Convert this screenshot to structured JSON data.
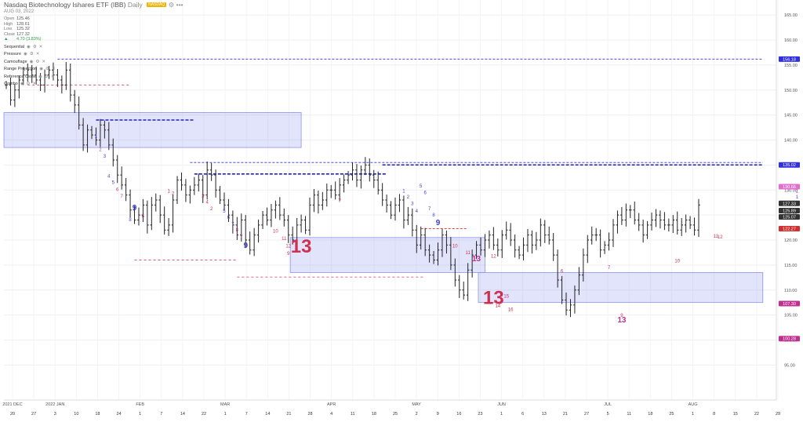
{
  "header": {
    "title": "Nasdaq Biotechnology Ishares ETF (IBB)",
    "interval": "Daily",
    "badge": "NASDAQ",
    "date": "AUG 03, 2022",
    "ohlc": [
      {
        "label": "Open",
        "value": "125.46"
      },
      {
        "label": "High",
        "value": "128.61"
      },
      {
        "label": "Low",
        "value": "125.32"
      },
      {
        "label": "Close",
        "value": "127.32"
      }
    ],
    "change": "4.70 (3.83%)",
    "indicators": [
      "Sequential",
      "Pressure",
      "Camouflage",
      "Range Projection",
      "Reference Close",
      "Combo"
    ]
  },
  "chart_data": {
    "type": "ohlc",
    "title": "Nasdaq Biotechnology Ishares ETF (IBB)",
    "ylim": [
      88,
      168
    ],
    "y_ticks": [
      95,
      100,
      105,
      110,
      115,
      120,
      125,
      130,
      135,
      140,
      145,
      150,
      155,
      160,
      165
    ],
    "x_labels": [
      {
        "text": "20",
        "group": "2021 DEC"
      },
      {
        "text": "27"
      },
      {
        "text": "3",
        "group": "2022 JAN"
      },
      {
        "text": "10"
      },
      {
        "text": "18"
      },
      {
        "text": "24"
      },
      {
        "text": "1",
        "group": "FEB"
      },
      {
        "text": "7"
      },
      {
        "text": "14"
      },
      {
        "text": "22"
      },
      {
        "text": "1",
        "group": "MAR"
      },
      {
        "text": "7"
      },
      {
        "text": "14"
      },
      {
        "text": "21"
      },
      {
        "text": "28"
      },
      {
        "text": "4",
        "group": "APR"
      },
      {
        "text": "11"
      },
      {
        "text": "18"
      },
      {
        "text": "25"
      },
      {
        "text": "2",
        "group": "MAY"
      },
      {
        "text": "9"
      },
      {
        "text": "16"
      },
      {
        "text": "23"
      },
      {
        "text": "1",
        "group": "JUN"
      },
      {
        "text": "6"
      },
      {
        "text": "13"
      },
      {
        "text": "21"
      },
      {
        "text": "27"
      },
      {
        "text": "5",
        "group": "JUL"
      },
      {
        "text": "11"
      },
      {
        "text": "18"
      },
      {
        "text": "25"
      },
      {
        "text": "1",
        "group": "AUG"
      },
      {
        "text": "8"
      },
      {
        "text": "15"
      },
      {
        "text": "22"
      },
      {
        "text": "29"
      }
    ],
    "closes": [
      151,
      148,
      150,
      152,
      153,
      154,
      153,
      152,
      151,
      153,
      154,
      153,
      152,
      151,
      154,
      149,
      147,
      143,
      139,
      142,
      141,
      140,
      143,
      142,
      139,
      136,
      133,
      131,
      129,
      126,
      124,
      125,
      127,
      123,
      127,
      128,
      125,
      122,
      123,
      128,
      132,
      131,
      129,
      130,
      131,
      132,
      129,
      134,
      133,
      130,
      128,
      127,
      125,
      123,
      121,
      124,
      120,
      118,
      121,
      123,
      125,
      124,
      126,
      127,
      125,
      124,
      121,
      120,
      123,
      124,
      122,
      127,
      129,
      127,
      128,
      130,
      130,
      129,
      131,
      132,
      133,
      134,
      132,
      134,
      135,
      133,
      132,
      130,
      128,
      127,
      125,
      127,
      128,
      124,
      125,
      122,
      119,
      121,
      118,
      117,
      116,
      118,
      121,
      119,
      115,
      112,
      110,
      109,
      114,
      117,
      119,
      118,
      120,
      121,
      119,
      118,
      121,
      122,
      120,
      118,
      117,
      119,
      121,
      119,
      120,
      123,
      121,
      120,
      117,
      112,
      108,
      106,
      107,
      110,
      113,
      117,
      120,
      121,
      121,
      118,
      119,
      120,
      123,
      125,
      124,
      126,
      126,
      124,
      123,
      121,
      123,
      124,
      125,
      124,
      123,
      123,
      124,
      122,
      123,
      124,
      123,
      122,
      127
    ],
    "price_labels": [
      {
        "value": "156.18",
        "price": 156.18,
        "color": "#3030e0"
      },
      {
        "value": "135.02",
        "price": 135.02,
        "color": "#3030e0"
      },
      {
        "value": "130.66",
        "price": 130.66,
        "color": "#e070d0"
      },
      {
        "value": "127.33",
        "price": 127.33,
        "color": "#333333"
      },
      {
        "value": "125.89",
        "price": 125.89,
        "color": "#333333"
      },
      {
        "value": "125.07",
        "price": 125.07,
        "color": "#333333"
      },
      {
        "value": "122.27",
        "price": 122.27,
        "color": "#d03030"
      },
      {
        "value": "107.30",
        "price": 107.3,
        "color": "#c03090"
      },
      {
        "value": "100.28",
        "price": 100.28,
        "color": "#c03090"
      }
    ],
    "zones": [
      {
        "x0": 0,
        "x1": 69,
        "y0": 138.5,
        "y1": 145.5
      },
      {
        "x0": 67,
        "x1": 112,
        "y0": 113.5,
        "y1": 120.5
      },
      {
        "x0": 111,
        "x1": 177,
        "y0": 107.5,
        "y1": 113.5
      }
    ],
    "levels": [
      {
        "price": 156.18,
        "x0": 12,
        "x1": 177,
        "color": "#3030d0",
        "dash": "3,2"
      },
      {
        "price": 151,
        "x0": 5,
        "x1": 29,
        "color": "#e0508a",
        "dash": "3,3"
      },
      {
        "price": 144,
        "x0": 21,
        "x1": 44,
        "color": "#2020c0",
        "dash": "4,2",
        "bold": true
      },
      {
        "price": 135.5,
        "x0": 43,
        "x1": 177,
        "color": "#3030d0",
        "dash": "3,2"
      },
      {
        "price": 135.02,
        "x0": 88,
        "x1": 177,
        "color": "#2020c0",
        "dash": "4,2",
        "bold": true
      },
      {
        "price": 133.2,
        "x0": 44,
        "x1": 89,
        "color": "#2020c0",
        "dash": "4,2",
        "bold": true
      },
      {
        "price": 116,
        "x0": 30,
        "x1": 54,
        "color": "#e0508a",
        "dash": "3,3"
      },
      {
        "price": 112.6,
        "x0": 54,
        "x1": 98,
        "color": "#e0508a",
        "dash": "3,3"
      },
      {
        "price": 122.27,
        "x0": 97,
        "x1": 108,
        "color": "#d03030",
        "dash": "3,2"
      }
    ],
    "counts": [
      {
        "text": "1",
        "x": 21,
        "price": 140.5,
        "color": "#4040d0",
        "size": 6
      },
      {
        "text": "2",
        "x": 22,
        "price": 137.8,
        "color": "#c03090",
        "size": 6
      },
      {
        "text": "3",
        "x": 23,
        "price": 136.5,
        "color": "#4040d0",
        "size": 6
      },
      {
        "text": "4",
        "x": 24,
        "price": 132.5,
        "color": "#4040d0",
        "size": 6
      },
      {
        "text": "5",
        "x": 25,
        "price": 131.2,
        "color": "#4040d0",
        "size": 6
      },
      {
        "text": "6",
        "x": 26,
        "price": 129.8,
        "color": "#c03090",
        "size": 6
      },
      {
        "text": "7",
        "x": 27,
        "price": 128.5,
        "color": "#c03090",
        "size": 6
      },
      {
        "text": "8",
        "x": 29,
        "price": 123.8,
        "color": "#4040d0",
        "size": 6
      },
      {
        "text": "9",
        "x": 30,
        "price": 126,
        "color": "#4040d0",
        "size": 10
      },
      {
        "text": "6",
        "x": 32,
        "price": 124.5,
        "color": "#c03090",
        "size": 6
      },
      {
        "text": "1",
        "x": 38,
        "price": 129.5,
        "color": "#d03050",
        "size": 6
      },
      {
        "text": "2",
        "x": 39,
        "price": 129,
        "color": "#d03050",
        "size": 6
      },
      {
        "text": "3",
        "x": 46,
        "price": 128.5,
        "color": "#d03050",
        "size": 6
      },
      {
        "text": "4",
        "x": 47,
        "price": 127.3,
        "color": "#d03050",
        "size": 6
      },
      {
        "text": "2",
        "x": 48,
        "price": 126,
        "color": "#d03050",
        "size": 6
      },
      {
        "text": "5",
        "x": 51,
        "price": 125.5,
        "color": "#4040d0",
        "size": 6
      },
      {
        "text": "6",
        "x": 52,
        "price": 124.2,
        "color": "#4040d0",
        "size": 6
      },
      {
        "text": "7",
        "x": 53,
        "price": 122.9,
        "color": "#4040d0",
        "size": 6
      },
      {
        "text": "8",
        "x": 54,
        "price": 121.7,
        "color": "#c03090",
        "size": 6
      },
      {
        "text": "7",
        "x": 55,
        "price": 120.3,
        "color": "#c03090",
        "size": 6
      },
      {
        "text": "9",
        "x": 56,
        "price": 118.4,
        "color": "#4040d0",
        "size": 10
      },
      {
        "text": "10",
        "x": 63,
        "price": 121.5,
        "color": "#d03050",
        "size": 6
      },
      {
        "text": "11",
        "x": 65,
        "price": 120,
        "color": "#d03050",
        "size": 6
      },
      {
        "text": "12",
        "x": 66,
        "price": 118.5,
        "color": "#d03050",
        "size": 6
      },
      {
        "text": "9",
        "x": 66,
        "price": 117,
        "color": "#d03050",
        "size": 6
      },
      {
        "text": "13",
        "x": 69,
        "price": 117.5,
        "color": "#d03050",
        "size": 24
      },
      {
        "text": "7",
        "x": 78,
        "price": 127.5,
        "color": "#d03050",
        "size": 6
      },
      {
        "text": "1",
        "x": 93,
        "price": 129.5,
        "color": "#4040d0",
        "size": 6
      },
      {
        "text": "2",
        "x": 94,
        "price": 128.3,
        "color": "#4040d0",
        "size": 6
      },
      {
        "text": "3",
        "x": 95,
        "price": 127,
        "color": "#4040d0",
        "size": 6
      },
      {
        "text": "4",
        "x": 96,
        "price": 125.5,
        "color": "#4040d0",
        "size": 6
      },
      {
        "text": "5",
        "x": 97,
        "price": 130.5,
        "color": "#4040d0",
        "size": 6
      },
      {
        "text": "6",
        "x": 98,
        "price": 129.2,
        "color": "#4040d0",
        "size": 6
      },
      {
        "text": "7",
        "x": 99,
        "price": 126,
        "color": "#4040d0",
        "size": 6
      },
      {
        "text": "8",
        "x": 100,
        "price": 124.7,
        "color": "#4040d0",
        "size": 6
      },
      {
        "text": "9",
        "x": 101,
        "price": 123,
        "color": "#4040d0",
        "size": 10
      },
      {
        "text": "10",
        "x": 105,
        "price": 118.5,
        "color": "#d03050",
        "size": 6
      },
      {
        "text": "11",
        "x": 108,
        "price": 117.2,
        "color": "#d03050",
        "size": 6
      },
      {
        "text": "12",
        "x": 114,
        "price": 116.5,
        "color": "#d03050",
        "size": 6
      },
      {
        "text": "13",
        "x": 110,
        "price": 115.8,
        "color": "#c03090",
        "size": 10
      },
      {
        "text": "13",
        "x": 114,
        "price": 107.2,
        "color": "#d03050",
        "size": 24
      },
      {
        "text": "14",
        "x": 115,
        "price": 106.5,
        "color": "#d03050",
        "size": 6
      },
      {
        "text": "15",
        "x": 117,
        "price": 108.5,
        "color": "#c03090",
        "size": 6
      },
      {
        "text": "16",
        "x": 118,
        "price": 105.8,
        "color": "#d03050",
        "size": 6
      },
      {
        "text": "6",
        "x": 130,
        "price": 113.5,
        "color": "#d03050",
        "size": 6
      },
      {
        "text": "7",
        "x": 141,
        "price": 114.2,
        "color": "#d03050",
        "size": 6
      },
      {
        "text": "9",
        "x": 144,
        "price": 104.6,
        "color": "#d03050",
        "size": 6
      },
      {
        "text": "13",
        "x": 144,
        "price": 103.5,
        "color": "#c03090",
        "size": 10
      },
      {
        "text": "10",
        "x": 157,
        "price": 115.5,
        "color": "#d03050",
        "size": 6
      },
      {
        "text": "11",
        "x": 166,
        "price": 120.5,
        "color": "#d03050",
        "size": 6
      },
      {
        "text": "12",
        "x": 167,
        "price": 120.3,
        "color": "#d03050",
        "size": 6
      },
      {
        "text": "1",
        "x": 185,
        "price": 129.5,
        "color": "#c03090",
        "size": 6
      },
      {
        "text": "1",
        "x": 185,
        "price": 128.3,
        "color": "#4040d0",
        "size": 6
      }
    ]
  }
}
